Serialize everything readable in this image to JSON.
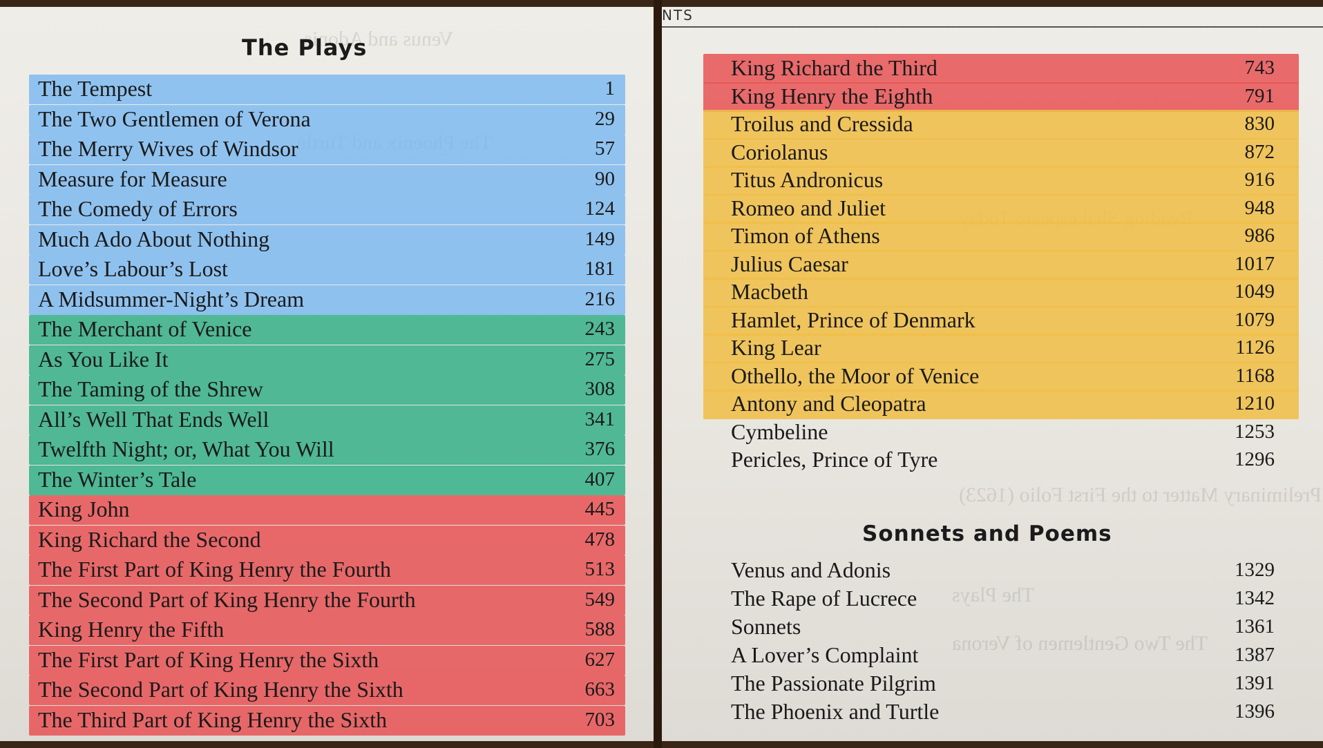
{
  "left_page": {
    "heading": "The Plays",
    "entries": [
      {
        "title": "The Tempest",
        "page": "1",
        "color": "#7ab8f0"
      },
      {
        "title": "The Two Gentlemen of Verona",
        "page": "29",
        "color": "#7ab8f0"
      },
      {
        "title": "The Merry Wives of Windsor",
        "page": "57",
        "color": "#7ab8f0"
      },
      {
        "title": "Measure for Measure",
        "page": "90",
        "color": "#7ab8f0"
      },
      {
        "title": "The Comedy of Errors",
        "page": "124",
        "color": "#7ab8f0"
      },
      {
        "title": "Much Ado About Nothing",
        "page": "149",
        "color": "#7ab8f0"
      },
      {
        "title": "Love’s Labour’s Lost",
        "page": "181",
        "color": "#7ab8f0"
      },
      {
        "title": "A Midsummer-Night’s Dream",
        "page": "216",
        "color": "#7ab8f0"
      },
      {
        "title": "The Merchant of Venice",
        "page": "243",
        "color": "#3ab28a"
      },
      {
        "title": "As You Like It",
        "page": "275",
        "color": "#3ab28a"
      },
      {
        "title": "The Taming of the Shrew",
        "page": "308",
        "color": "#3ab28a"
      },
      {
        "title": "All’s Well That Ends Well",
        "page": "341",
        "color": "#3ab28a"
      },
      {
        "title": "Twelfth Night; or, What You Will",
        "page": "376",
        "color": "#3ab28a"
      },
      {
        "title": "The Winter’s Tale",
        "page": "407",
        "color": "#3ab28a"
      },
      {
        "title": "King John",
        "page": "445",
        "color": "#e85456"
      },
      {
        "title": "King Richard the Second",
        "page": "478",
        "color": "#e85456"
      },
      {
        "title": "The First Part of King Henry the Fourth",
        "page": "513",
        "color": "#e85456"
      },
      {
        "title": "The Second Part of King Henry the Fourth",
        "page": "549",
        "color": "#e85456"
      },
      {
        "title": "King Henry the Fifth",
        "page": "588",
        "color": "#e85456"
      },
      {
        "title": "The First Part of King Henry the Sixth",
        "page": "627",
        "color": "#e85456"
      },
      {
        "title": "The Second Part of King Henry the Sixth",
        "page": "663",
        "color": "#e85456"
      },
      {
        "title": "The Third Part of King Henry the Sixth",
        "page": "703",
        "color": "#e85456"
      }
    ]
  },
  "right_page": {
    "running_head": "NTS",
    "entries": [
      {
        "title": "King Richard the Third",
        "page": "743",
        "color": "#e85456"
      },
      {
        "title": "King Henry the Eighth",
        "page": "791",
        "color": "#e85456"
      },
      {
        "title": "Troilus and Cressida",
        "page": "830",
        "color": "#f0be46"
      },
      {
        "title": "Coriolanus",
        "page": "872",
        "color": "#f0be46"
      },
      {
        "title": "Titus Andronicus",
        "page": "916",
        "color": "#f0be46"
      },
      {
        "title": "Romeo and Juliet",
        "page": "948",
        "color": "#f0be46"
      },
      {
        "title": "Timon of Athens",
        "page": "986",
        "color": "#f0be46"
      },
      {
        "title": "Julius Caesar",
        "page": "1017",
        "color": "#f0be46"
      },
      {
        "title": "Macbeth",
        "page": "1049",
        "color": "#f0be46"
      },
      {
        "title": "Hamlet, Prince of Denmark",
        "page": "1079",
        "color": "#f0be46"
      },
      {
        "title": "King Lear",
        "page": "1126",
        "color": "#f0be46"
      },
      {
        "title": "Othello, the Moor of Venice",
        "page": "1168",
        "color": "#f0be46"
      },
      {
        "title": "Antony and Cleopatra",
        "page": "1210",
        "color": "#f0be46"
      },
      {
        "title": "Cymbeline",
        "page": "1253",
        "color": ""
      },
      {
        "title": "Pericles, Prince of Tyre",
        "page": "1296",
        "color": ""
      }
    ],
    "poems_heading": "Sonnets and Poems",
    "poems": [
      {
        "title": "Venus and Adonis",
        "page": "1329"
      },
      {
        "title": "The Rape of Lucrece",
        "page": "1342"
      },
      {
        "title": "Sonnets",
        "page": "1361"
      },
      {
        "title": "A Lover’s Complaint",
        "page": "1387"
      },
      {
        "title": "The Passionate Pilgrim",
        "page": "1391"
      },
      {
        "title": "The Phoenix and Turtle",
        "page": "1396"
      }
    ]
  },
  "highlight_colors": {
    "comedies": "#7ab8f0",
    "late_comedies": "#3ab28a",
    "histories": "#e85456",
    "tragedies": "#f0be46"
  }
}
